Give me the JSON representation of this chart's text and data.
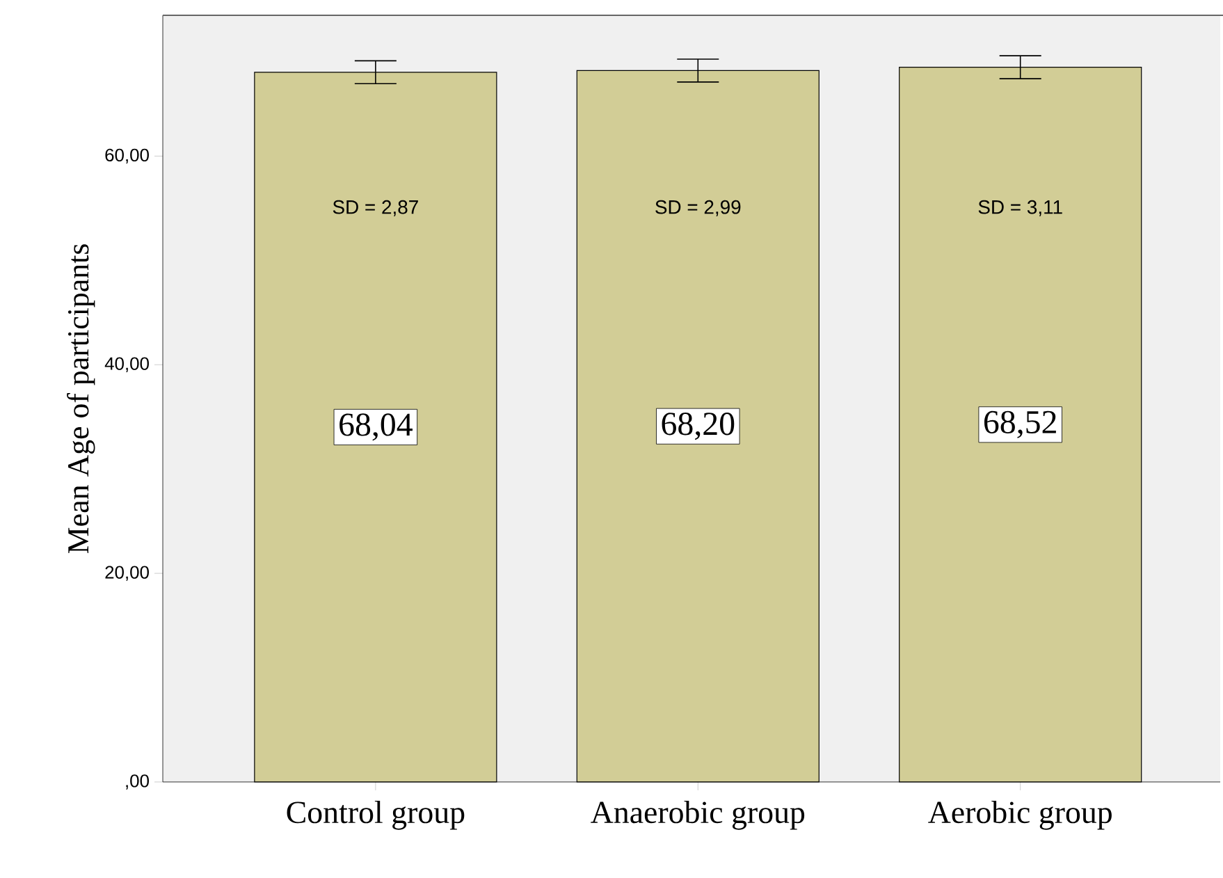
{
  "chart_data": {
    "type": "bar",
    "ylabel": "Mean Age of participants",
    "categories": [
      "Control group",
      "Anaerobic group",
      "Aerobic group"
    ],
    "values": [
      68.04,
      68.2,
      68.52
    ],
    "value_labels": [
      "68,04",
      "68,20",
      "68,52"
    ],
    "errors": [
      1.1,
      1.1,
      1.1
    ],
    "color": "#d2cd96",
    "ylim": [
      0,
      73.5
    ],
    "yticks": [
      {
        "value": 0,
        "label": ",00"
      },
      {
        "value": 20,
        "label": "20,00"
      },
      {
        "value": 40,
        "label": "40,00"
      },
      {
        "value": 60,
        "label": "60,00"
      }
    ],
    "annotations": [
      "SD = 2,87",
      "SD = 2,99",
      "SD = 3,11"
    ]
  }
}
